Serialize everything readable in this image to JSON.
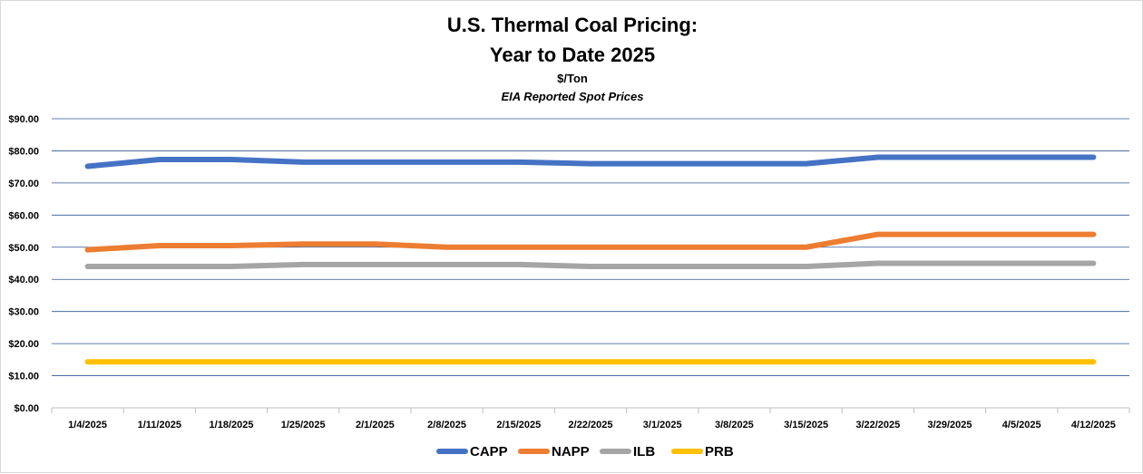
{
  "chart_data": {
    "type": "line",
    "title_line1": "U.S. Thermal Coal Pricing:",
    "title_line2": "Year to Date 2025",
    "subtitle": "$/Ton",
    "note": "EIA Reported Spot Prices",
    "xlabel": "",
    "ylabel": "",
    "ylim": [
      0,
      90
    ],
    "yticks": [
      "$0.00",
      "$10.00",
      "$20.00",
      "$30.00",
      "$40.00",
      "$50.00",
      "$60.00",
      "$70.00",
      "$80.00",
      "$90.00"
    ],
    "grid": true,
    "legend_position": "bottom",
    "categories": [
      "1/4/2025",
      "1/11/2025",
      "1/18/2025",
      "1/25/2025",
      "2/1/2025",
      "2/8/2025",
      "2/15/2025",
      "2/22/2025",
      "3/1/2025",
      "3/8/2025",
      "3/15/2025",
      "3/22/2025",
      "3/29/2025",
      "4/5/2025",
      "4/12/2025"
    ],
    "series": [
      {
        "name": "CAPP",
        "color": "#4472C4",
        "values": [
          75.2,
          77.3,
          77.3,
          76.5,
          76.5,
          76.5,
          76.5,
          76.0,
          76.0,
          76.0,
          76.0,
          78.0,
          78.0,
          78.0,
          78.0
        ]
      },
      {
        "name": "NAPP",
        "color": "#ED7D31",
        "values": [
          49.2,
          50.5,
          50.5,
          51.0,
          51.0,
          50.0,
          50.0,
          50.0,
          50.0,
          50.0,
          50.0,
          54.0,
          54.0,
          54.0,
          54.0
        ]
      },
      {
        "name": "ILB",
        "color": "#A5A5A5",
        "values": [
          44.0,
          44.0,
          44.0,
          44.6,
          44.6,
          44.6,
          44.6,
          44.0,
          44.0,
          44.0,
          44.0,
          45.0,
          45.0,
          45.0,
          45.0
        ]
      },
      {
        "name": "PRB",
        "color": "#FFC000",
        "values": [
          14.3,
          14.3,
          14.3,
          14.3,
          14.3,
          14.3,
          14.3,
          14.3,
          14.3,
          14.3,
          14.3,
          14.3,
          14.3,
          14.3,
          14.3
        ]
      }
    ]
  }
}
